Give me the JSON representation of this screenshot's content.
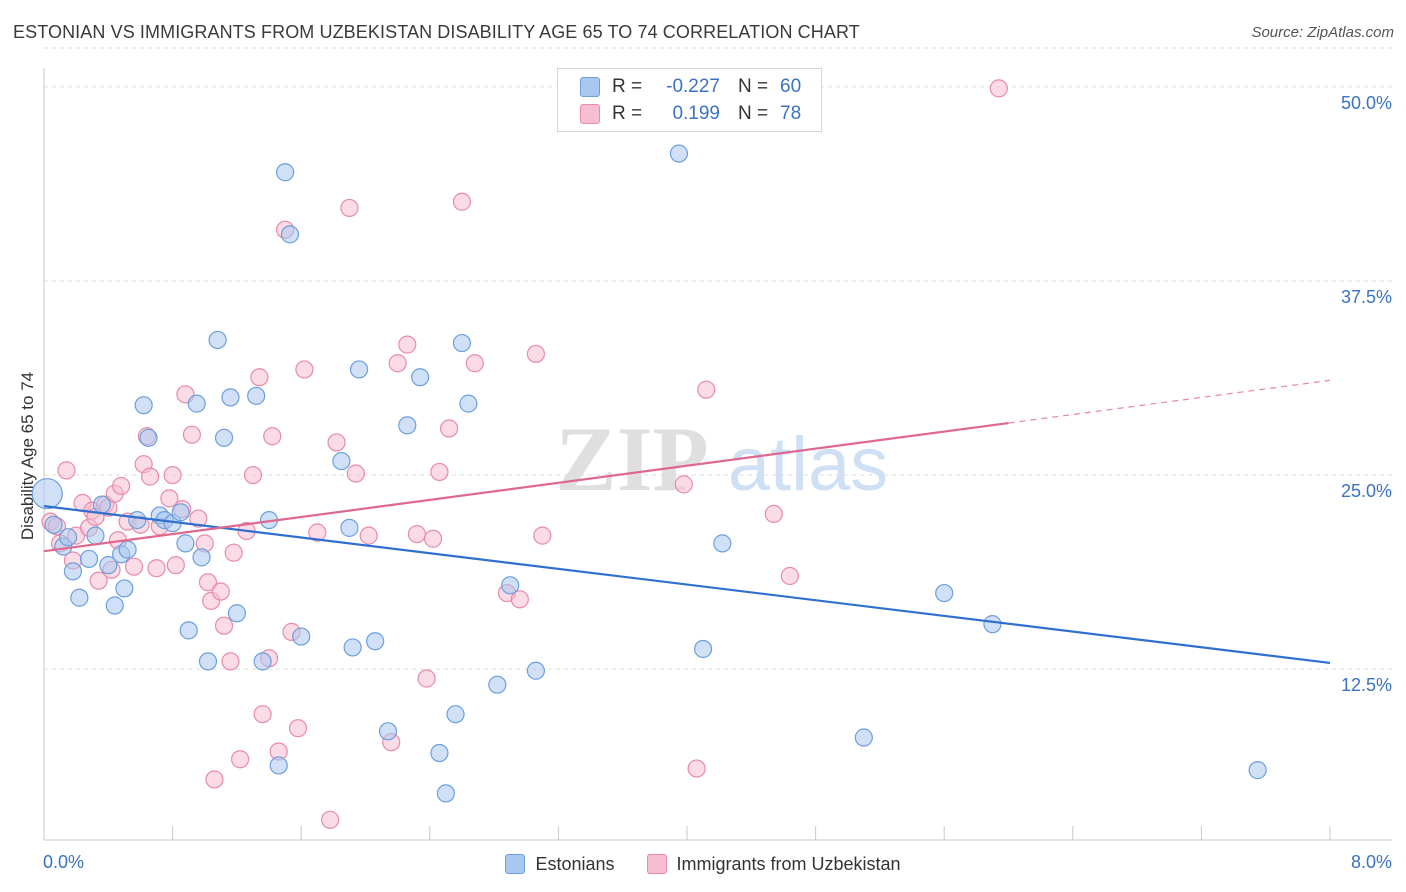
{
  "title": "ESTONIAN VS IMMIGRANTS FROM UZBEKISTAN DISABILITY AGE 65 TO 74 CORRELATION CHART",
  "source": "Source: ZipAtlas.com",
  "watermark": {
    "zip": "ZIP",
    "atlas": "atlas"
  },
  "colors": {
    "blue_fill": "#a9c8f0",
    "blue_stroke": "#6c9fdc",
    "blue_line": "#2f6fd0",
    "pink_fill": "#f7bdd0",
    "pink_stroke": "#e88aa9",
    "pink_line": "#e0678f",
    "tick_text": "#3b73c4",
    "grid": "#dddddd"
  },
  "legend": {
    "rows": [
      {
        "r_label": "R =",
        "r_value": "-0.227",
        "n_label": "N =",
        "n_value": "60"
      },
      {
        "r_label": "R =",
        "r_value": "0.199",
        "n_label": "N =",
        "n_value": "78"
      }
    ]
  },
  "chart_data": {
    "type": "scatter",
    "title": "ESTONIAN VS IMMIGRANTS FROM UZBEKISTAN DISABILITY AGE 65 TO 74 CORRELATION CHART",
    "xlabel": "",
    "ylabel": "Disability Age 65 to 74",
    "x_tick_labels": [
      "0.0%",
      "8.0%"
    ],
    "y_tick_labels": [
      "12.5%",
      "25.0%",
      "37.5%",
      "50.0%"
    ],
    "y_ticks": [
      12.5,
      25.0,
      37.5,
      50.0
    ],
    "xlim": [
      0,
      8.0
    ],
    "ylim": [
      1.5,
      52.5
    ],
    "grid": true,
    "legend_position": "bottom",
    "series": [
      {
        "name": "Estonians",
        "color": "#a9c8f0",
        "trend": {
          "x": [
            0,
            8.0
          ],
          "y": [
            23.0,
            12.9
          ],
          "dashed_from": null
        },
        "points": [
          [
            0.02,
            23.8
          ],
          [
            0.06,
            21.8
          ],
          [
            0.12,
            20.4
          ],
          [
            0.15,
            21.0
          ],
          [
            0.18,
            18.8
          ],
          [
            0.22,
            17.1
          ],
          [
            0.28,
            19.6
          ],
          [
            0.32,
            21.1
          ],
          [
            0.36,
            23.1
          ],
          [
            0.4,
            19.2
          ],
          [
            0.44,
            16.6
          ],
          [
            0.48,
            19.9
          ],
          [
            0.5,
            17.7
          ],
          [
            0.52,
            20.2
          ],
          [
            0.58,
            22.1
          ],
          [
            0.62,
            29.5
          ],
          [
            0.65,
            27.4
          ],
          [
            0.72,
            22.4
          ],
          [
            0.75,
            22.1
          ],
          [
            0.8,
            21.9
          ],
          [
            0.85,
            22.6
          ],
          [
            0.88,
            20.6
          ],
          [
            0.9,
            15.0
          ],
          [
            0.95,
            29.6
          ],
          [
            0.98,
            19.7
          ],
          [
            1.02,
            13.0
          ],
          [
            1.08,
            33.7
          ],
          [
            1.12,
            27.4
          ],
          [
            1.16,
            30.0
          ],
          [
            1.2,
            16.1
          ],
          [
            1.32,
            30.1
          ],
          [
            1.36,
            13.0
          ],
          [
            1.4,
            22.1
          ],
          [
            1.46,
            6.3
          ],
          [
            1.5,
            44.5
          ],
          [
            1.53,
            40.5
          ],
          [
            1.6,
            14.6
          ],
          [
            1.85,
            25.9
          ],
          [
            1.9,
            21.6
          ],
          [
            1.92,
            13.9
          ],
          [
            1.96,
            31.8
          ],
          [
            2.06,
            14.3
          ],
          [
            2.14,
            8.5
          ],
          [
            2.26,
            28.2
          ],
          [
            2.34,
            31.3
          ],
          [
            2.46,
            7.1
          ],
          [
            2.5,
            4.5
          ],
          [
            2.56,
            9.6
          ],
          [
            2.6,
            33.5
          ],
          [
            2.64,
            29.6
          ],
          [
            2.82,
            11.5
          ],
          [
            2.9,
            17.9
          ],
          [
            3.06,
            12.4
          ],
          [
            3.95,
            45.7
          ],
          [
            4.1,
            13.8
          ],
          [
            4.22,
            20.6
          ],
          [
            5.1,
            8.1
          ],
          [
            5.6,
            17.4
          ],
          [
            5.9,
            15.4
          ],
          [
            7.55,
            6.0
          ]
        ]
      },
      {
        "name": "Immigrants from Uzbekistan",
        "color": "#f7bdd0",
        "trend": {
          "x": [
            0,
            8.0
          ],
          "y": [
            20.1,
            31.1
          ],
          "dashed_from": 6.0
        },
        "points": [
          [
            0.04,
            22.0
          ],
          [
            0.08,
            21.7
          ],
          [
            0.1,
            20.6
          ],
          [
            0.14,
            25.3
          ],
          [
            0.18,
            19.5
          ],
          [
            0.2,
            21.1
          ],
          [
            0.24,
            23.2
          ],
          [
            0.28,
            21.6
          ],
          [
            0.3,
            22.7
          ],
          [
            0.32,
            22.3
          ],
          [
            0.34,
            18.2
          ],
          [
            0.38,
            23.1
          ],
          [
            0.4,
            22.9
          ],
          [
            0.42,
            18.9
          ],
          [
            0.44,
            23.8
          ],
          [
            0.46,
            20.8
          ],
          [
            0.48,
            24.3
          ],
          [
            0.52,
            22.0
          ],
          [
            0.56,
            19.1
          ],
          [
            0.6,
            21.8
          ],
          [
            0.62,
            25.7
          ],
          [
            0.64,
            27.5
          ],
          [
            0.66,
            24.9
          ],
          [
            0.7,
            19.0
          ],
          [
            0.72,
            21.7
          ],
          [
            0.78,
            23.5
          ],
          [
            0.8,
            25.0
          ],
          [
            0.82,
            19.2
          ],
          [
            0.86,
            22.8
          ],
          [
            0.88,
            30.2
          ],
          [
            0.92,
            27.6
          ],
          [
            0.96,
            22.2
          ],
          [
            1.0,
            20.6
          ],
          [
            1.02,
            18.1
          ],
          [
            1.04,
            16.9
          ],
          [
            1.06,
            5.4
          ],
          [
            1.1,
            17.5
          ],
          [
            1.12,
            15.3
          ],
          [
            1.16,
            13.0
          ],
          [
            1.18,
            20.0
          ],
          [
            1.22,
            6.7
          ],
          [
            1.26,
            21.4
          ],
          [
            1.3,
            25.0
          ],
          [
            1.34,
            31.3
          ],
          [
            1.36,
            9.6
          ],
          [
            1.4,
            13.2
          ],
          [
            1.42,
            27.5
          ],
          [
            1.46,
            7.2
          ],
          [
            1.5,
            40.8
          ],
          [
            1.54,
            14.9
          ],
          [
            1.58,
            8.7
          ],
          [
            1.62,
            31.8
          ],
          [
            1.7,
            21.3
          ],
          [
            1.78,
            2.8
          ],
          [
            1.82,
            27.1
          ],
          [
            1.9,
            42.2
          ],
          [
            1.94,
            25.1
          ],
          [
            2.02,
            21.1
          ],
          [
            2.16,
            7.8
          ],
          [
            2.2,
            32.2
          ],
          [
            2.26,
            33.4
          ],
          [
            2.32,
            21.2
          ],
          [
            2.38,
            11.9
          ],
          [
            2.42,
            20.9
          ],
          [
            2.46,
            25.2
          ],
          [
            2.52,
            28.0
          ],
          [
            2.6,
            42.6
          ],
          [
            2.68,
            32.2
          ],
          [
            2.88,
            17.4
          ],
          [
            2.96,
            17.0
          ],
          [
            3.06,
            32.8
          ],
          [
            3.1,
            21.1
          ],
          [
            3.98,
            24.4
          ],
          [
            4.06,
            6.1
          ],
          [
            4.12,
            30.5
          ],
          [
            4.54,
            22.5
          ],
          [
            4.64,
            18.5
          ],
          [
            5.94,
            49.9
          ]
        ]
      }
    ]
  }
}
